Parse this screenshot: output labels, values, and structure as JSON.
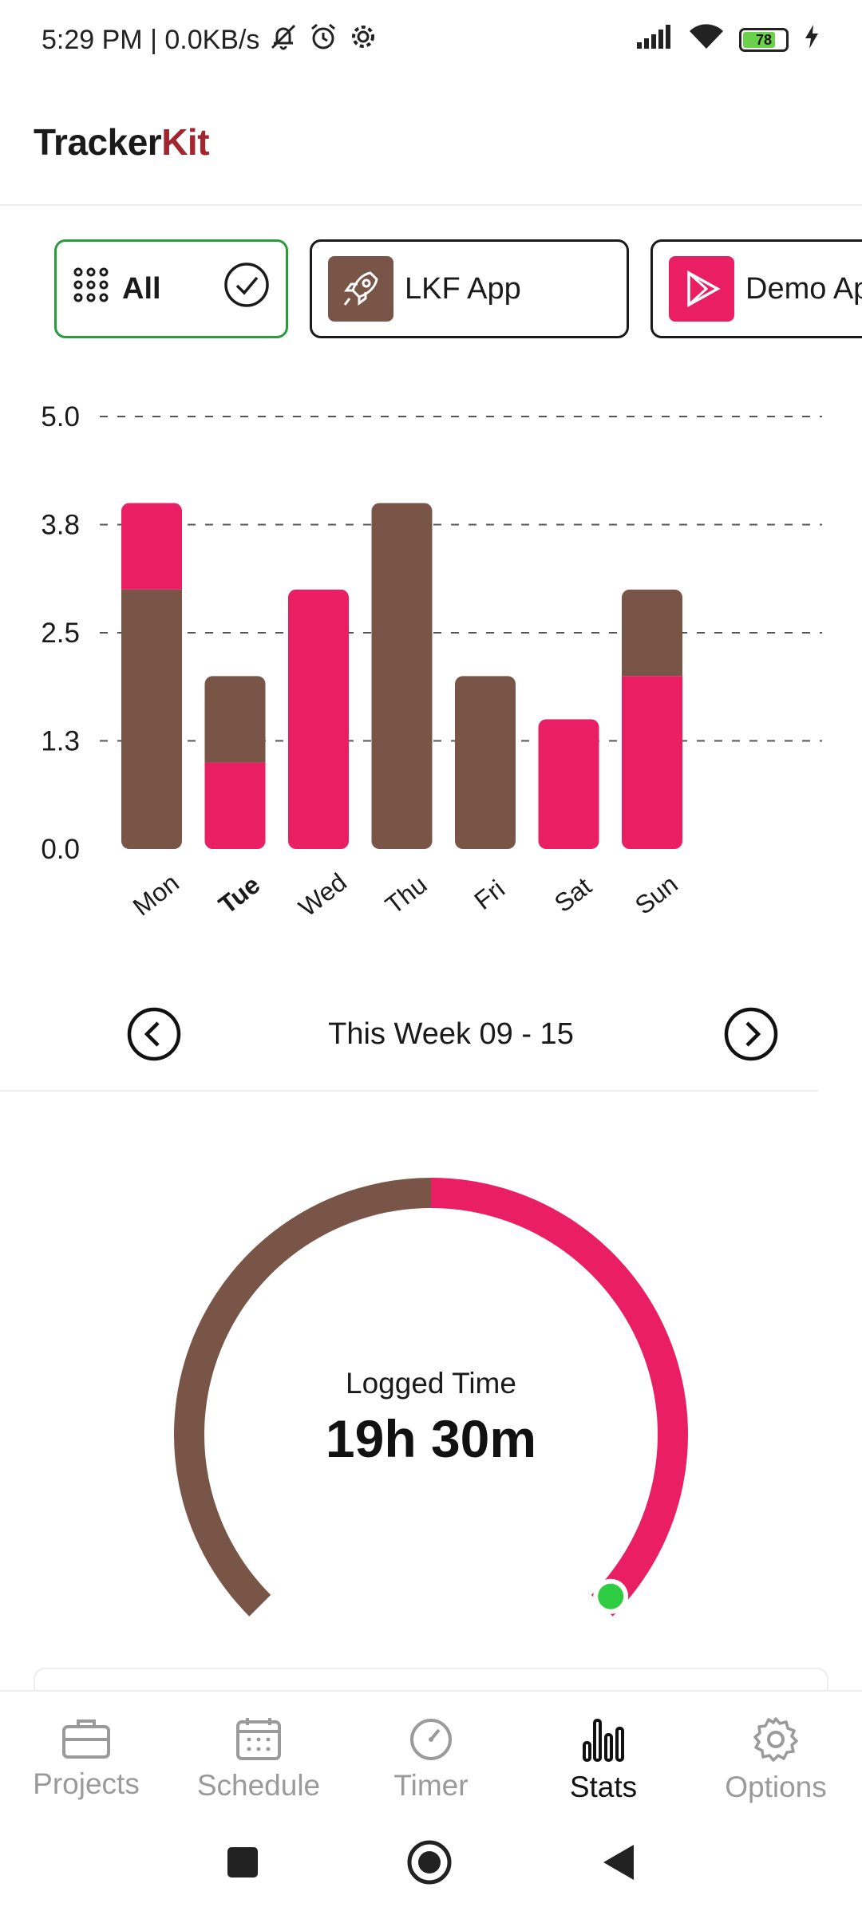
{
  "status_bar": {
    "time_speed": "5:29 PM | 0.0KB/s",
    "battery_level": "78",
    "battery_fraction": 0.78,
    "icons": [
      "mute-bell-icon",
      "alarm-icon",
      "settings-cog-icon",
      "signal-icon",
      "wifi-icon",
      "battery-icon",
      "charging-bolt-icon"
    ]
  },
  "app": {
    "title_main": "Tracker",
    "title_accent": "Kit"
  },
  "projects": {
    "items": [
      {
        "label": "All",
        "selected": true,
        "icon": "grid-dots-icon"
      },
      {
        "label": "LKF App",
        "selected": false,
        "icon": "rocket-icon",
        "color": "#795548"
      },
      {
        "label": "Demo App",
        "selected": false,
        "icon": "play-store-icon",
        "color": "#e91e63"
      }
    ]
  },
  "chart_data": {
    "type": "bar",
    "stacked": true,
    "categories": [
      "Mon",
      "Tue",
      "Wed",
      "Thu",
      "Fri",
      "Sat",
      "Sun"
    ],
    "current_category": "Tue",
    "series": [
      {
        "color": "#795548",
        "values": [
          3,
          1,
          0,
          4,
          2,
          0,
          1
        ]
      },
      {
        "color": "#e91e63",
        "values": [
          1,
          1,
          3,
          0,
          0,
          1.5,
          2
        ]
      }
    ],
    "stack_order": {
      "Mon": [
        "#795548",
        "#e91e63"
      ],
      "Tue": [
        "#e91e63",
        "#795548"
      ],
      "Wed": [
        "#e91e63"
      ],
      "Thu": [
        "#795548"
      ],
      "Fri": [
        "#795548"
      ],
      "Sat": [
        "#e91e63"
      ],
      "Sun": [
        "#e91e63",
        "#795548"
      ]
    },
    "y_ticks": [
      "0.0",
      "1.3",
      "2.5",
      "3.8",
      "5.0"
    ],
    "y_tick_values": [
      0,
      1.25,
      2.5,
      3.75,
      5
    ],
    "ylim": [
      0,
      5
    ],
    "grid": "dashed horizontal"
  },
  "week_nav": {
    "label": "This Week 09 - 15"
  },
  "summary": {
    "caption": "Logged Time",
    "value": "19h 30m",
    "gauge_segments": [
      {
        "color": "#795548",
        "fraction": 0.5
      },
      {
        "color": "#e91e63",
        "fraction": 0.5
      }
    ],
    "marker_color": "#2ecc40"
  },
  "bottom_nav": {
    "items": [
      {
        "label": "Projects",
        "icon": "briefcase-icon",
        "active": false
      },
      {
        "label": "Schedule",
        "icon": "calendar-icon",
        "active": false
      },
      {
        "label": "Timer",
        "icon": "stopwatch-icon",
        "active": false
      },
      {
        "label": "Stats",
        "icon": "bar-chart-icon",
        "active": true
      },
      {
        "label": "Options",
        "icon": "gear-icon",
        "active": false
      }
    ]
  },
  "colors": {
    "brown": "#795548",
    "pink": "#e91e63",
    "accent_title": "#a3262f",
    "selected_border": "#2a9a3a"
  }
}
